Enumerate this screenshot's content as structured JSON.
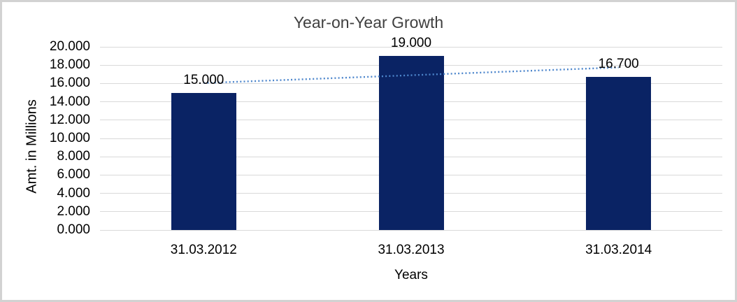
{
  "chart_data": {
    "type": "bar",
    "title": "Year-on-Year Growth",
    "xlabel": "Years",
    "ylabel": "Amt. in Millions",
    "categories": [
      "31.03.2012",
      "31.03.2013",
      "31.03.2014"
    ],
    "values": [
      15.0,
      19.0,
      16.7
    ],
    "data_labels": [
      "15.000",
      "19.000",
      "16.700"
    ],
    "ylim": [
      0,
      20
    ],
    "ytick_step": 2,
    "ytick_labels": [
      "0.000",
      "2.000",
      "4.000",
      "6.000",
      "8.000",
      "10.000",
      "12.000",
      "14.000",
      "16.000",
      "18.000",
      "20.000"
    ],
    "grid": true,
    "legend_position": "none",
    "bar_color": "#0a2364",
    "gridline_color": "#d9d9d9",
    "title_color": "#404040",
    "text_color": "#000000",
    "trendline": {
      "type": "linear",
      "style": "dotted",
      "color": "#4d86cc",
      "start_value": 16.05,
      "end_value": 17.75
    }
  }
}
